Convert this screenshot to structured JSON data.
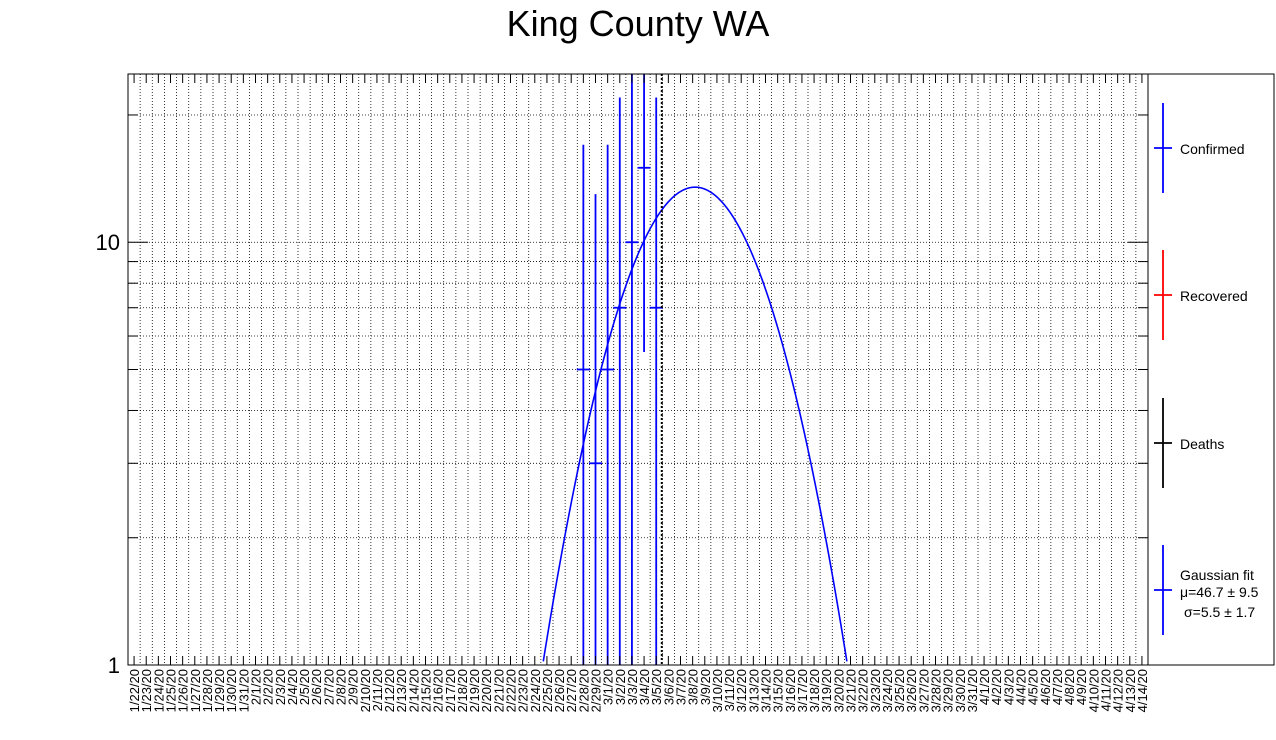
{
  "chart_data": {
    "type": "scatter",
    "title": "King County WA",
    "xlabel": "",
    "ylabel": "",
    "y_scale": "log",
    "ylim": [
      1,
      25
    ],
    "y_tick_labels": [
      "1",
      "10"
    ],
    "grid": true,
    "categories": [
      "1/22/20",
      "1/23/20",
      "1/24/20",
      "1/25/20",
      "1/26/20",
      "1/27/20",
      "1/28/20",
      "1/29/20",
      "1/30/20",
      "1/31/20",
      "2/1/20",
      "2/2/20",
      "2/3/20",
      "2/4/20",
      "2/5/20",
      "2/6/20",
      "2/7/20",
      "2/8/20",
      "2/9/20",
      "2/10/20",
      "2/11/20",
      "2/12/20",
      "2/13/20",
      "2/14/20",
      "2/15/20",
      "2/16/20",
      "2/17/20",
      "2/18/20",
      "2/19/20",
      "2/20/20",
      "2/21/20",
      "2/22/20",
      "2/23/20",
      "2/24/20",
      "2/25/20",
      "2/26/20",
      "2/27/20",
      "2/28/20",
      "2/29/20",
      "3/1/20",
      "3/2/20",
      "3/3/20",
      "3/4/20",
      "3/5/20",
      "3/6/20",
      "3/7/20",
      "3/8/20",
      "3/9/20",
      "3/10/20",
      "3/11/20",
      "3/12/20",
      "3/13/20",
      "3/14/20",
      "3/15/20",
      "3/16/20",
      "3/17/20",
      "3/18/20",
      "3/19/20",
      "3/20/20",
      "3/21/20",
      "3/22/20",
      "3/23/20",
      "3/24/20",
      "3/25/20",
      "3/26/20",
      "3/27/20",
      "3/28/20",
      "3/29/20",
      "3/30/20",
      "3/31/20",
      "4/1/20",
      "4/2/20",
      "4/3/20",
      "4/4/20",
      "4/5/20",
      "4/6/20",
      "4/7/20",
      "4/8/20",
      "4/9/20",
      "4/10/20",
      "4/11/20",
      "4/12/20",
      "4/13/20",
      "4/14/20"
    ],
    "series": [
      {
        "name": "Confirmed",
        "color": "#0000ff",
        "points": [
          {
            "x": "2/28/20",
            "y": 5,
            "err_lo": 4,
            "err_hi": 12
          },
          {
            "x": "2/29/20",
            "y": 3,
            "err_lo": 3,
            "err_hi": 10
          },
          {
            "x": "3/1/20",
            "y": 5,
            "err_lo": 4,
            "err_hi": 12
          },
          {
            "x": "3/2/20",
            "y": 7,
            "err_lo": 6,
            "err_hi": 15
          },
          {
            "x": "3/3/20",
            "y": 10,
            "err_lo": 9,
            "err_hi": 18
          },
          {
            "x": "3/4/20",
            "y": 15,
            "err_lo": 9.5,
            "err_hi": 25
          },
          {
            "x": "3/5/20",
            "y": 7,
            "err_lo": 6,
            "err_hi": 15
          }
        ]
      },
      {
        "name": "Recovered",
        "color": "#ff0000",
        "points": []
      },
      {
        "name": "Deaths",
        "color": "#000000",
        "points": []
      }
    ],
    "fit": {
      "name": "Gaussian fit",
      "color": "#0000ff",
      "mu_label": "μ=46.7 ± 9.5",
      "sigma_label": "σ=5.5 ± 1.7",
      "mu": 46.7,
      "sigma": 5.5,
      "peak": 13.5
    },
    "vline": {
      "x": "3/6/20",
      "style": "dotted",
      "color": "#000000"
    },
    "legend_position": "right"
  }
}
